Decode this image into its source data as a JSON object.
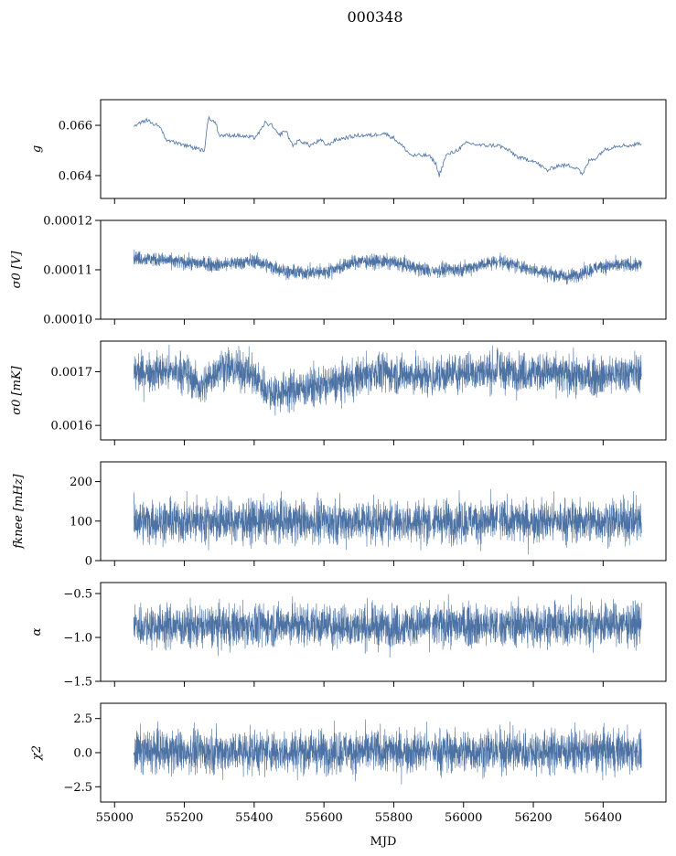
{
  "chart_data": {
    "type": "line",
    "title": "000348",
    "xlabel": "MJD",
    "xlim": [
      54960,
      56580
    ],
    "xticks": [
      55000,
      55200,
      55400,
      55600,
      55800,
      56000,
      56200,
      56400
    ],
    "xtick_labels": [
      "55000",
      "55200",
      "55400",
      "55600",
      "55800",
      "56000",
      "56200",
      "56400"
    ],
    "x_range": [
      55055,
      56510
    ],
    "gaps": [
      55908,
      56100
    ],
    "line_color": "#4c72a4",
    "panels": [
      {
        "ylabel": "g",
        "ylim": [
          0.06309,
          0.06702
        ],
        "yticks": [
          0.064,
          0.066
        ],
        "ytick_labels": [
          "0.064",
          "0.066"
        ],
        "noise": 8e-05,
        "density": 600,
        "trend": [
          [
            55055,
            0.0659
          ],
          [
            55070,
            0.0661
          ],
          [
            55090,
            0.0662
          ],
          [
            55110,
            0.0661
          ],
          [
            55130,
            0.0659
          ],
          [
            55150,
            0.0654
          ],
          [
            55180,
            0.0653
          ],
          [
            55200,
            0.0652
          ],
          [
            55230,
            0.0651
          ],
          [
            55258,
            0.065
          ],
          [
            55268,
            0.0663
          ],
          [
            55290,
            0.0661
          ],
          [
            55300,
            0.0656
          ],
          [
            55350,
            0.0656
          ],
          [
            55400,
            0.0655
          ],
          [
            55420,
            0.0658
          ],
          [
            55430,
            0.0661
          ],
          [
            55450,
            0.066
          ],
          [
            55470,
            0.0656
          ],
          [
            55490,
            0.0658
          ],
          [
            55510,
            0.0652
          ],
          [
            55530,
            0.0654
          ],
          [
            55560,
            0.0652
          ],
          [
            55590,
            0.0654
          ],
          [
            55610,
            0.0652
          ],
          [
            55630,
            0.0654
          ],
          [
            55660,
            0.0655
          ],
          [
            55700,
            0.0656
          ],
          [
            55740,
            0.0656
          ],
          [
            55770,
            0.0657
          ],
          [
            55800,
            0.0655
          ],
          [
            55830,
            0.0651
          ],
          [
            55850,
            0.0648
          ],
          [
            55900,
            0.0648
          ],
          [
            55920,
            0.0645
          ],
          [
            55930,
            0.064
          ],
          [
            55950,
            0.0648
          ],
          [
            55980,
            0.065
          ],
          [
            56010,
            0.0653
          ],
          [
            56050,
            0.0652
          ],
          [
            56100,
            0.0652
          ],
          [
            56130,
            0.065
          ],
          [
            56160,
            0.0647
          ],
          [
            56200,
            0.0646
          ],
          [
            56220,
            0.0644
          ],
          [
            56240,
            0.0642
          ],
          [
            56270,
            0.0644
          ],
          [
            56300,
            0.0644
          ],
          [
            56330,
            0.0643
          ],
          [
            56340,
            0.064
          ],
          [
            56360,
            0.0646
          ],
          [
            56380,
            0.0647
          ],
          [
            56400,
            0.065
          ],
          [
            56440,
            0.0652
          ],
          [
            56480,
            0.0652
          ],
          [
            56510,
            0.0653
          ]
        ]
      },
      {
        "ylabel": "σ0 [V]",
        "ylim": [
          0.0001,
          0.00012
        ],
        "yticks": [
          0.0001,
          0.00011,
          0.00012
        ],
        "ytick_labels": [
          "0.00010",
          "0.00011",
          "0.00012"
        ],
        "noise": 1.2e-06,
        "density": 3000,
        "trend": [
          [
            55055,
            0.0001125
          ],
          [
            55200,
            0.0001115
          ],
          [
            55300,
            0.000111
          ],
          [
            55400,
            0.0001118
          ],
          [
            55500,
            0.0001095
          ],
          [
            55600,
            0.0001095
          ],
          [
            55700,
            0.0001118
          ],
          [
            55800,
            0.0001115
          ],
          [
            55900,
            0.0001098
          ],
          [
            56000,
            0.0001102
          ],
          [
            56100,
            0.0001118
          ],
          [
            56200,
            0.00011
          ],
          [
            56300,
            0.0001085
          ],
          [
            56400,
            0.0001108
          ],
          [
            56510,
            0.000111
          ]
        ]
      },
      {
        "ylabel": "σ0 [mK]",
        "ylim": [
          0.001573,
          0.001757
        ],
        "yticks": [
          0.0016,
          0.0017
        ],
        "ytick_labels": [
          "0.0016",
          "0.0017"
        ],
        "noise": 3e-05,
        "density": 3000,
        "trend": [
          [
            55055,
            0.0017
          ],
          [
            55200,
            0.0017
          ],
          [
            55250,
            0.00167
          ],
          [
            55300,
            0.00171
          ],
          [
            55380,
            0.0017
          ],
          [
            55450,
            0.00166
          ],
          [
            55550,
            0.00167
          ],
          [
            55650,
            0.00168
          ],
          [
            55750,
            0.0017
          ],
          [
            55900,
            0.00169
          ],
          [
            56000,
            0.0017
          ],
          [
            56200,
            0.0017
          ],
          [
            56350,
            0.00169
          ],
          [
            56510,
            0.0017
          ]
        ]
      },
      {
        "ylabel": "fknee [mHz]",
        "ylim": [
          0,
          250
        ],
        "yticks": [
          0,
          100,
          200
        ],
        "ytick_labels": [
          "0",
          "100",
          "200"
        ],
        "noise": 45,
        "density": 3000,
        "trend": [
          [
            55055,
            100
          ],
          [
            56510,
            100
          ]
        ]
      },
      {
        "ylabel": "α",
        "ylim": [
          -1.5,
          -0.375
        ],
        "yticks": [
          -1.5,
          -1.0,
          -0.5
        ],
        "ytick_labels": [
          "−1.5",
          "−1.0",
          "−0.5"
        ],
        "noise": 0.2,
        "density": 3000,
        "trend": [
          [
            55055,
            -0.86
          ],
          [
            55300,
            -0.88
          ],
          [
            55500,
            -0.85
          ],
          [
            55700,
            -0.88
          ],
          [
            55900,
            -0.86
          ],
          [
            56100,
            -0.86
          ],
          [
            56300,
            -0.85
          ],
          [
            56510,
            -0.84
          ]
        ]
      },
      {
        "ylabel": "χ2",
        "ylim": [
          -3.62,
          3.62
        ],
        "yticks": [
          -2.5,
          0.0,
          2.5
        ],
        "ytick_labels": [
          "−2.5",
          "0.0",
          "2.5"
        ],
        "noise": 1.3,
        "density": 3000,
        "trend": [
          [
            55055,
            0.1
          ],
          [
            56510,
            0.1
          ]
        ]
      }
    ]
  }
}
